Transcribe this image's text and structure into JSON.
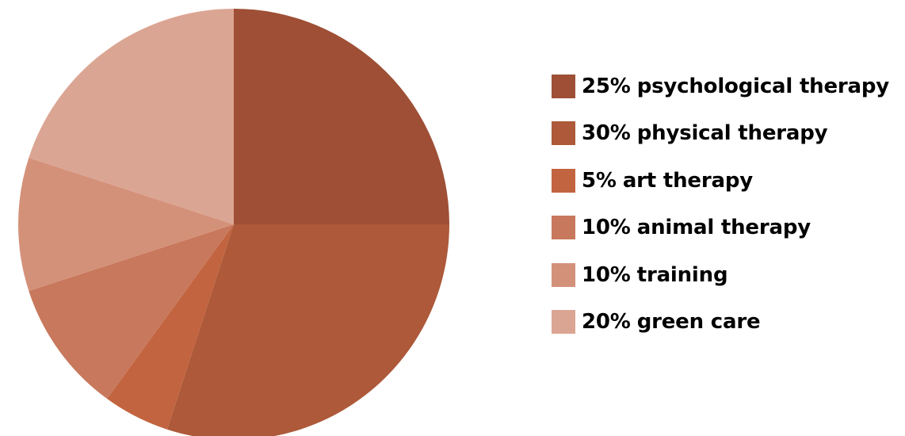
{
  "chart_data": {
    "type": "pie",
    "title": "",
    "slices": [
      {
        "value": 25,
        "percent_label": "25%",
        "label": "psychological therapy",
        "color": "#9e4f35"
      },
      {
        "value": 30,
        "percent_label": "30%",
        "label": "physical therapy",
        "color": "#ad593a"
      },
      {
        "value": 5,
        "percent_label": "5%",
        "label": "art therapy",
        "color": "#c2643f"
      },
      {
        "value": 10,
        "percent_label": "10%",
        "label": "animal therapy",
        "color": "#c8785c"
      },
      {
        "value": 10,
        "percent_label": "10%",
        "label": "training",
        "color": "#d4917a"
      },
      {
        "value": 20,
        "percent_label": "20%",
        "label": "green care",
        "color": "#dba593"
      }
    ],
    "start_angle": "12 o'clock",
    "direction": "clockwise",
    "legend_position": "right"
  }
}
